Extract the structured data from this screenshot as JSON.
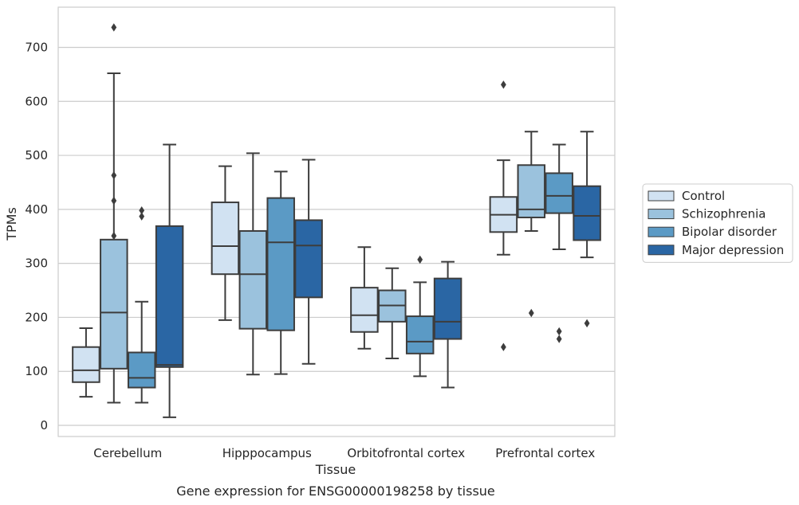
{
  "chart_data": {
    "type": "box",
    "title": "",
    "caption": "Gene expression for ENSG00000198258 by tissue",
    "xlabel": "Tissue",
    "ylabel": "TPMs",
    "ylim": [
      -20,
      775
    ],
    "yticks": [
      0,
      100,
      200,
      300,
      400,
      500,
      600,
      700
    ],
    "grid": "horizontal",
    "legend_position": "right",
    "categories": [
      "Cerebellum",
      "Hipppocampus",
      "Orbitofrontal cortex",
      "Prefrontal cortex"
    ],
    "series": [
      {
        "name": "Control",
        "color": "#d1e2f2",
        "boxes": [
          {
            "whislo": 53,
            "q1": 80,
            "med": 102,
            "q3": 145,
            "whishi": 180,
            "fliers": []
          },
          {
            "whislo": 195,
            "q1": 280,
            "med": 332,
            "q3": 413,
            "whishi": 480,
            "fliers": []
          },
          {
            "whislo": 142,
            "q1": 173,
            "med": 204,
            "q3": 255,
            "whishi": 330,
            "fliers": []
          },
          {
            "whislo": 316,
            "q1": 358,
            "med": 390,
            "q3": 423,
            "whishi": 491,
            "fliers": [
              631,
              145
            ]
          }
        ]
      },
      {
        "name": "Schizophrenia",
        "color": "#9bc2dd",
        "boxes": [
          {
            "whislo": 42,
            "q1": 105,
            "med": 209,
            "q3": 344,
            "whishi": 652,
            "fliers": [
              737,
              463,
              416,
              351
            ]
          },
          {
            "whislo": 94,
            "q1": 179,
            "med": 280,
            "q3": 360,
            "whishi": 504,
            "fliers": []
          },
          {
            "whislo": 124,
            "q1": 192,
            "med": 222,
            "q3": 250,
            "whishi": 291,
            "fliers": []
          },
          {
            "whislo": 360,
            "q1": 385,
            "med": 400,
            "q3": 482,
            "whishi": 544,
            "fliers": [
              208
            ]
          }
        ]
      },
      {
        "name": "Bipolar disorder",
        "color": "#5b9ac5",
        "boxes": [
          {
            "whislo": 42,
            "q1": 70,
            "med": 88,
            "q3": 135,
            "whishi": 229,
            "fliers": [
              398,
              387
            ]
          },
          {
            "whislo": 95,
            "q1": 176,
            "med": 339,
            "q3": 421,
            "whishi": 470,
            "fliers": []
          },
          {
            "whislo": 91,
            "q1": 133,
            "med": 155,
            "q3": 202,
            "whishi": 265,
            "fliers": [
              307
            ]
          },
          {
            "whislo": 326,
            "q1": 393,
            "med": 425,
            "q3": 467,
            "whishi": 520,
            "fliers": [
              174,
              160
            ]
          }
        ]
      },
      {
        "name": "Major depression",
        "color": "#2a66a4",
        "boxes": [
          {
            "whislo": 15,
            "q1": 108,
            "med": 112,
            "q3": 369,
            "whishi": 520,
            "fliers": []
          },
          {
            "whislo": 114,
            "q1": 237,
            "med": 333,
            "q3": 380,
            "whishi": 492,
            "fliers": []
          },
          {
            "whislo": 70,
            "q1": 160,
            "med": 192,
            "q3": 272,
            "whishi": 303,
            "fliers": []
          },
          {
            "whislo": 311,
            "q1": 343,
            "med": 388,
            "q3": 443,
            "whishi": 544,
            "fliers": [
              189
            ]
          }
        ]
      }
    ]
  }
}
